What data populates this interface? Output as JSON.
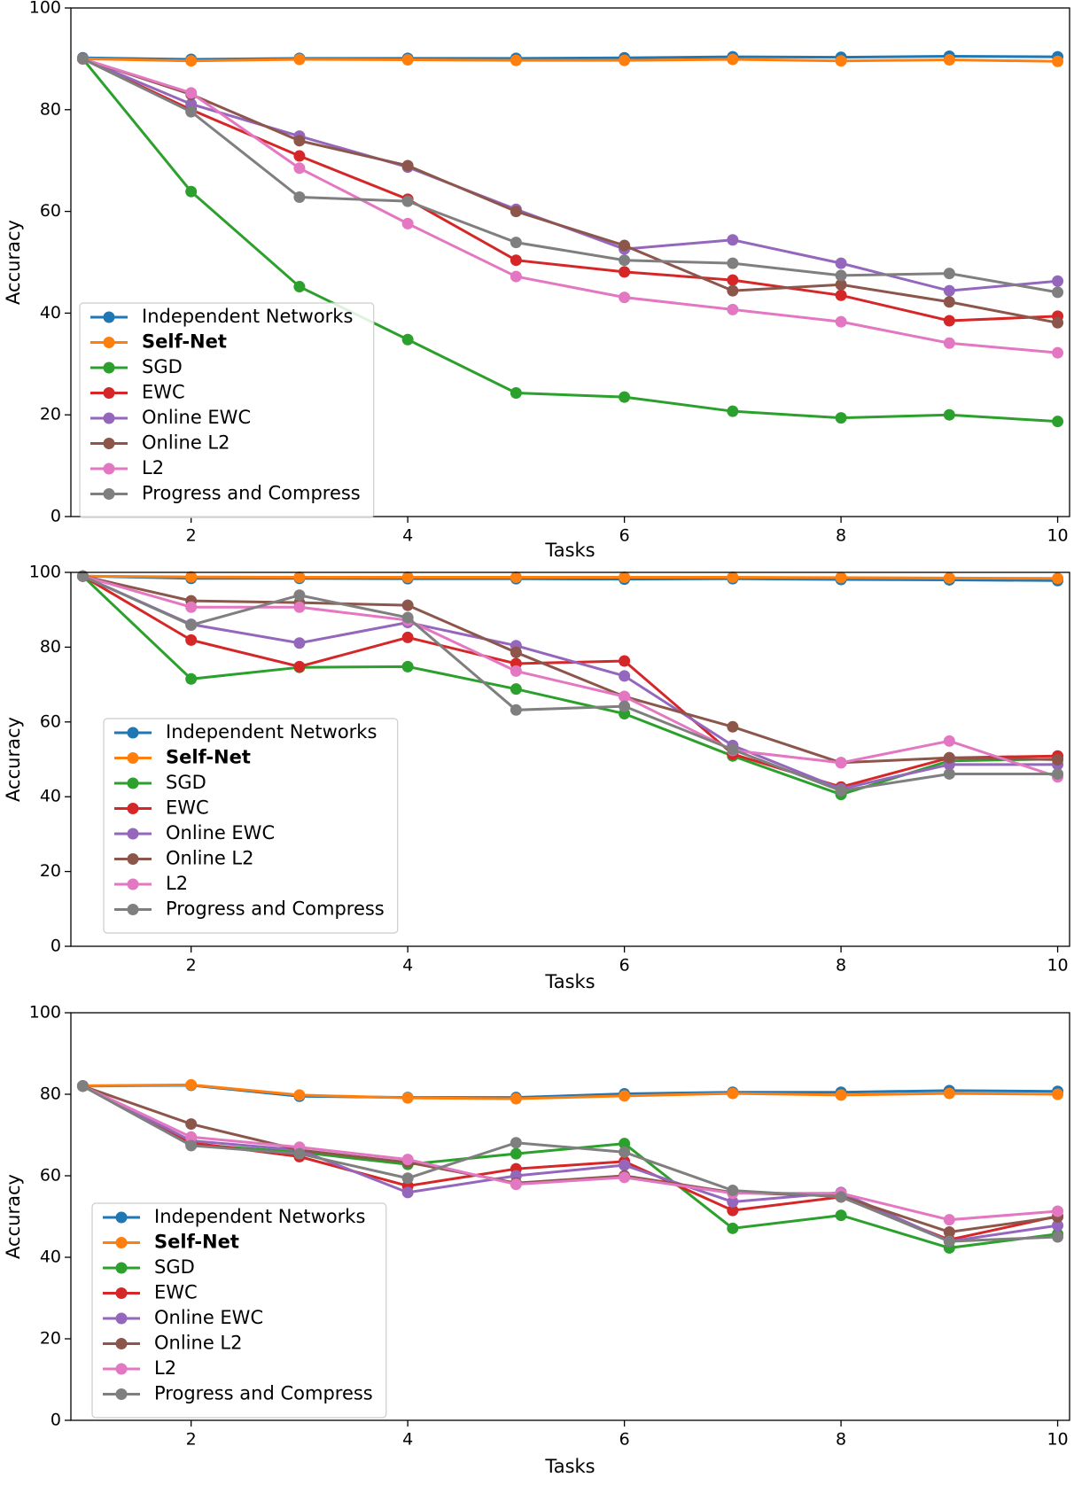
{
  "chart_data": [
    {
      "type": "line",
      "xlabel": "Tasks",
      "ylabel": "Accuracy",
      "x": [
        1,
        2,
        3,
        4,
        5,
        6,
        7,
        8,
        9,
        10
      ],
      "xlim": [
        0.89,
        10.11
      ],
      "ylim": [
        0,
        100
      ],
      "xticks": [
        2,
        4,
        6,
        8,
        10
      ],
      "yticks": [
        0,
        20,
        40,
        60,
        80,
        100
      ],
      "legend": "lower left",
      "series": [
        {
          "name": "Independent Networks",
          "color": "#1f77b4",
          "values": [
            90.2,
            89.9,
            90.1,
            90.1,
            90.1,
            90.2,
            90.4,
            90.3,
            90.5,
            90.4
          ]
        },
        {
          "name": "Self-Net",
          "color": "#ff7f0e",
          "bold": true,
          "values": [
            90,
            89.6,
            89.9,
            89.8,
            89.7,
            89.7,
            89.9,
            89.6,
            89.8,
            89.5
          ]
        },
        {
          "name": "SGD",
          "color": "#2ca02c",
          "values": [
            90,
            63.9,
            45.2,
            34.8,
            24.3,
            23.5,
            20.7,
            19.4,
            20,
            18.7
          ]
        },
        {
          "name": "EWC",
          "color": "#d62728",
          "values": [
            90,
            80,
            70.9,
            62.4,
            50.4,
            48.1,
            46.5,
            43.5,
            38.5,
            39.4
          ]
        },
        {
          "name": "Online EWC",
          "color": "#9467bd",
          "values": [
            90,
            81.1,
            74.8,
            68.7,
            60.4,
            52.6,
            54.4,
            49.8,
            44.4,
            46.3
          ]
        },
        {
          "name": "Online L2",
          "color": "#8c564b",
          "values": [
            90,
            83,
            73.9,
            69,
            60,
            53.3,
            44.4,
            45.6,
            42.2,
            38.1
          ]
        },
        {
          "name": "L2",
          "color": "#e377c2",
          "values": [
            90,
            83.3,
            68.5,
            57.6,
            47.2,
            43.1,
            40.7,
            38.3,
            34.1,
            32.2
          ]
        },
        {
          "name": "Progress and Compress",
          "color": "#7f7f7f",
          "values": [
            90,
            79.6,
            62.8,
            62,
            53.9,
            50.4,
            49.8,
            47.4,
            47.8,
            44.1
          ]
        }
      ]
    },
    {
      "type": "line",
      "xlabel": "Tasks",
      "ylabel": "Accuracy",
      "x": [
        1,
        2,
        3,
        4,
        5,
        6,
        7,
        8,
        9,
        10
      ],
      "xlim": [
        0.89,
        10.11
      ],
      "ylim": [
        0,
        100
      ],
      "xticks": [
        2,
        4,
        6,
        8,
        10
      ],
      "yticks": [
        0,
        20,
        40,
        60,
        80,
        100
      ],
      "legend": "lower left",
      "series": [
        {
          "name": "Independent Networks",
          "color": "#1f77b4",
          "values": [
            99,
            98.4,
            98.4,
            98.3,
            98.3,
            98.2,
            98.3,
            98.1,
            98,
            97.8
          ]
        },
        {
          "name": "Self-Net",
          "color": "#ff7f0e",
          "bold": true,
          "values": [
            99,
            98.8,
            98.7,
            98.7,
            98.7,
            98.7,
            98.7,
            98.6,
            98.5,
            98.4
          ]
        },
        {
          "name": "SGD",
          "color": "#2ca02c",
          "values": [
            99,
            71.5,
            74.6,
            74.8,
            68.8,
            62.2,
            50.9,
            40.6,
            49.6,
            50.1
          ]
        },
        {
          "name": "EWC",
          "color": "#d62728",
          "values": [
            99,
            81.9,
            74.8,
            82.6,
            75.6,
            76.3,
            51.4,
            42.6,
            50.4,
            50.9
          ]
        },
        {
          "name": "Online EWC",
          "color": "#9467bd",
          "values": [
            99,
            86.1,
            81.1,
            86.6,
            80.4,
            72.3,
            53.7,
            42.1,
            48.6,
            48.6
          ]
        },
        {
          "name": "Online L2",
          "color": "#8c564b",
          "values": [
            99,
            92.4,
            91.9,
            91.2,
            78.6,
            66.8,
            58.7,
            49.1,
            50.4,
            49.9
          ]
        },
        {
          "name": "L2",
          "color": "#e377c2",
          "values": [
            99,
            90.7,
            90.7,
            87.2,
            73.6,
            66.8,
            52.4,
            49.1,
            54.9,
            45.3
          ]
        },
        {
          "name": "Progress and Compress",
          "color": "#7f7f7f",
          "values": [
            99,
            85.9,
            93.9,
            87.9,
            63.2,
            64.2,
            52.6,
            41.6,
            46.1,
            46.1
          ]
        }
      ]
    },
    {
      "type": "line",
      "xlabel": "Tasks",
      "ylabel": "Accuracy",
      "x": [
        1,
        2,
        3,
        4,
        5,
        6,
        7,
        8,
        9,
        10
      ],
      "xlim": [
        0.89,
        10.11
      ],
      "ylim": [
        0,
        100
      ],
      "xticks": [
        2,
        4,
        6,
        8,
        10
      ],
      "yticks": [
        0,
        20,
        40,
        60,
        80,
        100
      ],
      "legend": "lower left",
      "series": [
        {
          "name": "Independent Networks",
          "color": "#1f77b4",
          "values": [
            82,
            82.2,
            79.5,
            79.2,
            79.2,
            80.1,
            80.5,
            80.5,
            80.9,
            80.7
          ]
        },
        {
          "name": "Self-Net",
          "color": "#ff7f0e",
          "bold": true,
          "values": [
            82.1,
            82.3,
            79.8,
            79.1,
            78.9,
            79.6,
            80.2,
            79.8,
            80.2,
            80
          ]
        },
        {
          "name": "SGD",
          "color": "#2ca02c",
          "values": [
            82,
            67.7,
            65.8,
            62.8,
            65.4,
            67.9,
            47.1,
            50.3,
            42.3,
            45.7
          ]
        },
        {
          "name": "EWC",
          "color": "#d62728",
          "values": [
            82,
            68.1,
            64.7,
            57.5,
            61.7,
            63.5,
            51.5,
            54.8,
            44.3,
            50.1
          ]
        },
        {
          "name": "Online EWC",
          "color": "#9467bd",
          "values": [
            82,
            68.6,
            66.3,
            55.9,
            60,
            62.6,
            53.6,
            55.9,
            43.9,
            47.8
          ]
        },
        {
          "name": "Online L2",
          "color": "#8c564b",
          "values": [
            82,
            72.7,
            66.3,
            63.3,
            58.2,
            60,
            55.9,
            55,
            46.2,
            49.9
          ]
        },
        {
          "name": "L2",
          "color": "#e377c2",
          "values": [
            82,
            69.5,
            67,
            64,
            57.9,
            59.6,
            55.7,
            55.7,
            49.2,
            51.3
          ]
        },
        {
          "name": "Progress and Compress",
          "color": "#7f7f7f",
          "values": [
            82,
            67.4,
            65.4,
            59.4,
            68.1,
            65.8,
            56.4,
            54.8,
            43.9,
            45
          ]
        }
      ]
    }
  ]
}
